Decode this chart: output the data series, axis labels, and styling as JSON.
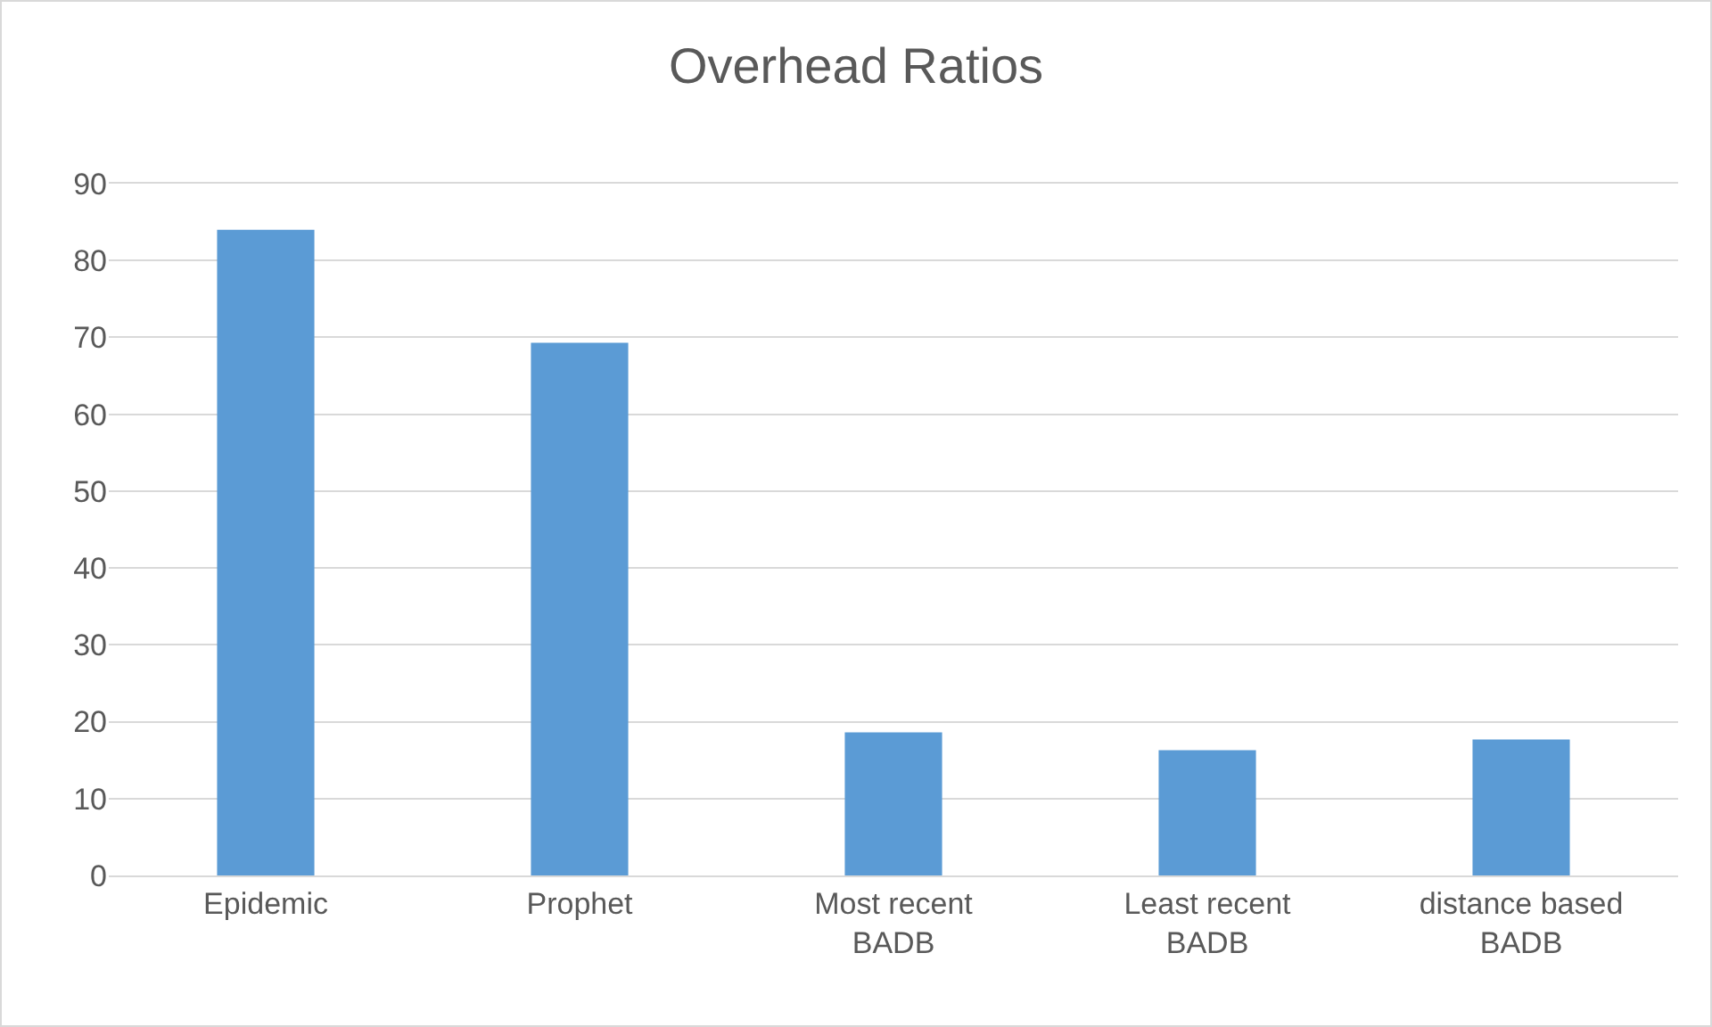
{
  "chart_data": {
    "type": "bar",
    "title": "Overhead Ratios",
    "categories": [
      "Epidemic",
      "Prophet",
      "Most recent BADB",
      "Least recent BADB",
      "distance based BADB"
    ],
    "values": [
      84,
      69.3,
      18.6,
      16.3,
      17.7
    ],
    "color": "#5b9bd5",
    "ylim": [
      0,
      90
    ],
    "yticks": [
      0,
      10,
      20,
      30,
      40,
      50,
      60,
      70,
      80,
      90
    ],
    "grid": "y"
  }
}
